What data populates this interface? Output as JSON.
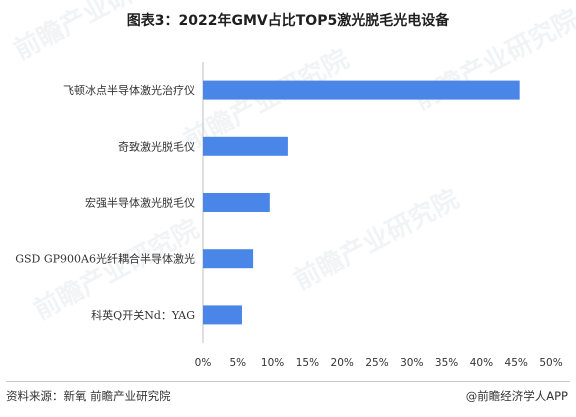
{
  "title": "图表3：2022年GMV占比TOP5激光脱毛光电设备",
  "chart_data": {
    "type": "bar",
    "orientation": "horizontal",
    "categories": [
      "飞顿冰点半导体激光治疗仪",
      "奇致激光脱毛仪",
      "宏强半导体激光脱毛仪",
      "GSD GP900A6光纤耦合半导体激光",
      "科英Q开关Nd：YAG"
    ],
    "values": [
      45.5,
      12.2,
      9.6,
      7.2,
      5.6
    ],
    "unit": "%",
    "xlim": [
      0,
      50
    ],
    "ticks": [
      "0%",
      "5%",
      "10%",
      "15%",
      "20%",
      "25%",
      "30%",
      "35%",
      "40%",
      "45%",
      "50%"
    ],
    "bar_color": "#4a86e8",
    "grid": false,
    "legend": "none"
  },
  "footer": {
    "source": "资料来源：新氧 前瞻产业研究院",
    "brand": "@前瞻经济学人APP"
  }
}
